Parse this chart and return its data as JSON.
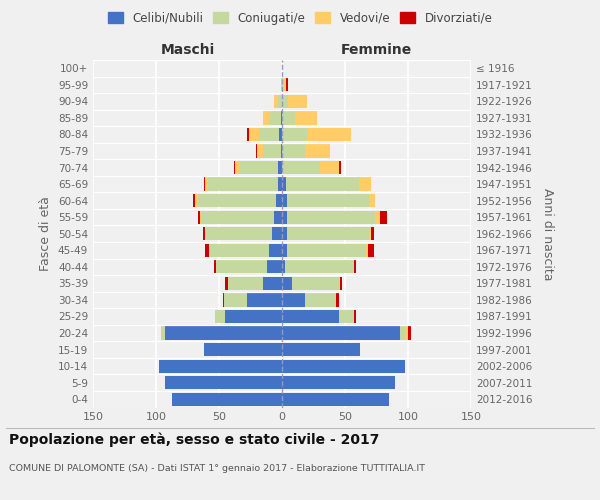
{
  "age_groups": [
    "0-4",
    "5-9",
    "10-14",
    "15-19",
    "20-24",
    "25-29",
    "30-34",
    "35-39",
    "40-44",
    "45-49",
    "50-54",
    "55-59",
    "60-64",
    "65-69",
    "70-74",
    "75-79",
    "80-84",
    "85-89",
    "90-94",
    "95-99",
    "100+"
  ],
  "birth_years": [
    "2012-2016",
    "2007-2011",
    "2002-2006",
    "1997-2001",
    "1992-1996",
    "1987-1991",
    "1982-1986",
    "1977-1981",
    "1972-1976",
    "1967-1971",
    "1962-1966",
    "1957-1961",
    "1952-1956",
    "1947-1951",
    "1942-1946",
    "1937-1941",
    "1932-1936",
    "1927-1931",
    "1922-1926",
    "1917-1921",
    "≤ 1916"
  ],
  "maschi": {
    "celibe": [
      87,
      93,
      98,
      62,
      93,
      45,
      28,
      15,
      12,
      10,
      8,
      6,
      5,
      3,
      3,
      1,
      2,
      1,
      0,
      0,
      0
    ],
    "coniugato": [
      0,
      0,
      0,
      0,
      3,
      8,
      18,
      28,
      40,
      48,
      52,
      58,
      62,
      56,
      30,
      14,
      16,
      9,
      3,
      1,
      0
    ],
    "vedovo": [
      0,
      0,
      0,
      0,
      0,
      0,
      0,
      0,
      0,
      0,
      1,
      1,
      2,
      2,
      4,
      5,
      8,
      5,
      3,
      0,
      0
    ],
    "divorziato": [
      0,
      0,
      0,
      0,
      0,
      0,
      1,
      2,
      2,
      3,
      2,
      2,
      2,
      1,
      1,
      1,
      2,
      0,
      0,
      0,
      0
    ]
  },
  "femmine": {
    "nubile": [
      85,
      90,
      98,
      62,
      94,
      45,
      18,
      8,
      2,
      4,
      4,
      4,
      4,
      3,
      0,
      0,
      0,
      0,
      0,
      0,
      0
    ],
    "coniugata": [
      0,
      0,
      0,
      0,
      4,
      12,
      25,
      38,
      55,
      63,
      65,
      70,
      65,
      58,
      30,
      18,
      20,
      10,
      5,
      1,
      0
    ],
    "vedova": [
      0,
      0,
      0,
      0,
      2,
      0,
      0,
      0,
      0,
      1,
      2,
      4,
      5,
      10,
      15,
      20,
      35,
      18,
      15,
      2,
      0
    ],
    "divorziata": [
      0,
      0,
      0,
      0,
      2,
      2,
      2,
      2,
      2,
      5,
      2,
      5,
      0,
      0,
      2,
      0,
      0,
      0,
      0,
      2,
      0
    ]
  },
  "colors": {
    "celibe": "#4472C4",
    "coniugato": "#C5D8A0",
    "vedovo": "#FFCC66",
    "divorziato": "#CC0000"
  },
  "legend_labels": [
    "Celibi/Nubili",
    "Coniugati/e",
    "Vedovi/e",
    "Divorziati/e"
  ],
  "title": "Popolazione per età, sesso e stato civile - 2017",
  "subtitle": "COMUNE DI PALOMONTE (SA) - Dati ISTAT 1° gennaio 2017 - Elaborazione TUTTITALIA.IT",
  "ylabel_left": "Fasce di età",
  "ylabel_right": "Anni di nascita",
  "xlabel_maschi": "Maschi",
  "xlabel_femmine": "Femmine",
  "xlim": 150,
  "bg_color": "#f0f0f0",
  "grid_color": "#ffffff"
}
